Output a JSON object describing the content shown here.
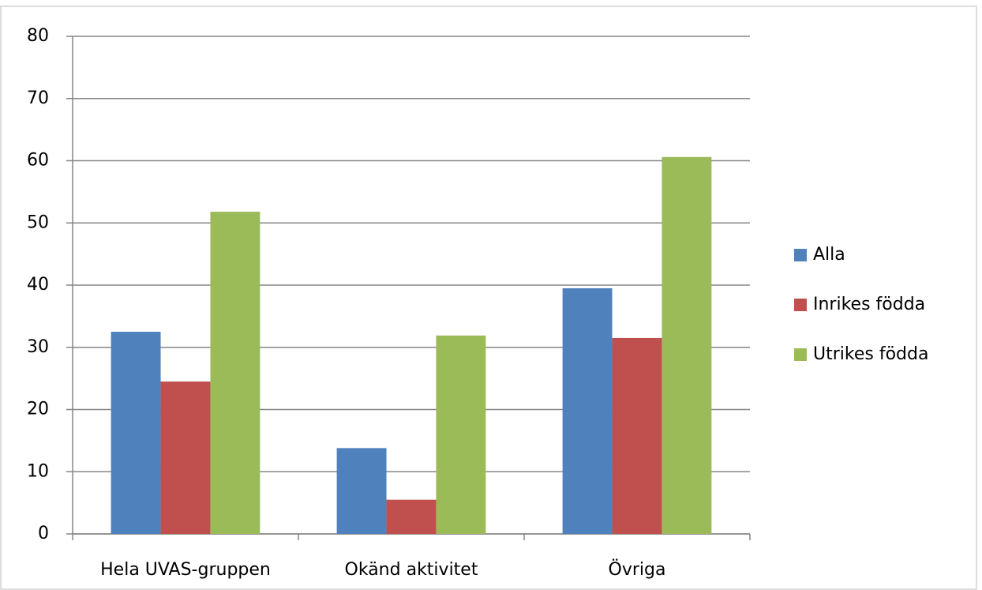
{
  "chart_data": {
    "type": "bar",
    "categories": [
      "Hela UVAS-gruppen",
      "Okänd aktivitet",
      "Övriga"
    ],
    "series": [
      {
        "name": "Alla",
        "color": "#4f81bd",
        "values": [
          32.5,
          13.8,
          39.5
        ]
      },
      {
        "name": "Inrikes födda",
        "color": "#c0504d",
        "values": [
          24.5,
          5.5,
          31.5
        ]
      },
      {
        "name": "Utrikes födda",
        "color": "#9bbb59",
        "values": [
          51.8,
          31.9,
          60.6
        ]
      }
    ],
    "ylim": [
      0,
      80
    ],
    "yticks": [
      0,
      10,
      20,
      30,
      40,
      50,
      60,
      70,
      80
    ],
    "grid": true,
    "legend": "right"
  }
}
